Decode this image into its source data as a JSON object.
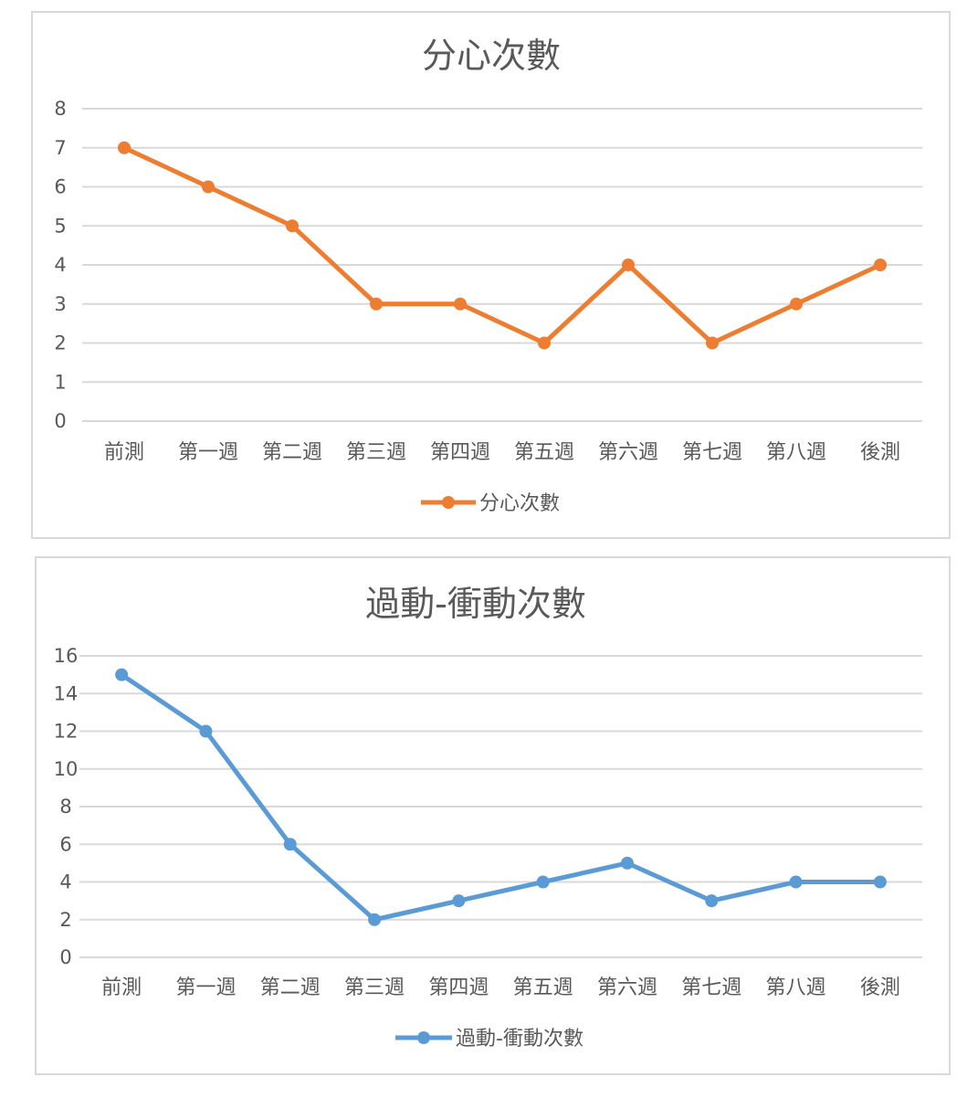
{
  "chart_data": [
    {
      "type": "line",
      "title": "分心次數",
      "categories": [
        "前測",
        "第一週",
        "第二週",
        "第三週",
        "第四週",
        "第五週",
        "第六週",
        "第七週",
        "第八週",
        "後測"
      ],
      "series": [
        {
          "name": "分心次數",
          "values": [
            7,
            6,
            5,
            3,
            3,
            2,
            4,
            2,
            3,
            4
          ],
          "color": "#ed7d31"
        }
      ],
      "ylim": [
        0,
        8
      ],
      "yticks": [
        0,
        1,
        2,
        3,
        4,
        5,
        6,
        7,
        8
      ],
      "grid": true,
      "legend": "bottom"
    },
    {
      "type": "line",
      "title": "過動-衝動次數",
      "categories": [
        "前測",
        "第一週",
        "第二週",
        "第三週",
        "第四週",
        "第五週",
        "第六週",
        "第七週",
        "第八週",
        "後測"
      ],
      "series": [
        {
          "name": "過動-衝動次數",
          "values": [
            15,
            12,
            6,
            2,
            3,
            4,
            5,
            3,
            4,
            4
          ],
          "color": "#5b9bd5"
        }
      ],
      "ylim": [
        0,
        16
      ],
      "yticks": [
        0,
        2,
        4,
        6,
        8,
        10,
        12,
        14,
        16
      ],
      "grid": true,
      "legend": "bottom"
    }
  ]
}
